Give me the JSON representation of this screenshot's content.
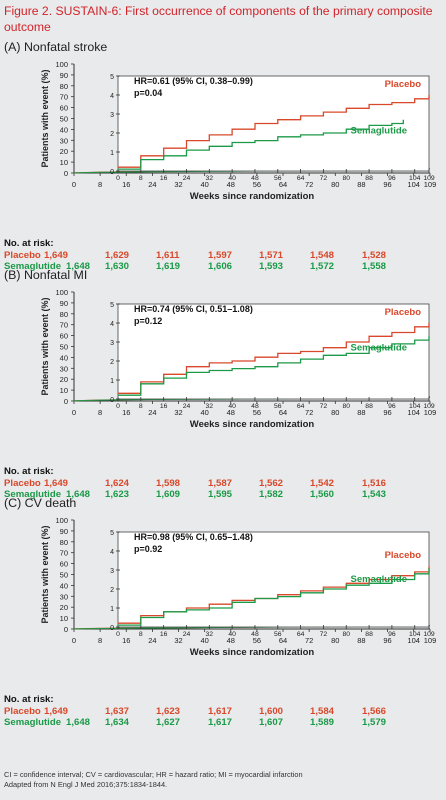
{
  "figure_title": "Figure 2. SUSTAIN-6: First occurrence of components of the primary composite outcome",
  "colors": {
    "placebo": "#d9482b",
    "semaglutide": "#1b9a47",
    "title": "#d2232a"
  },
  "chart_data": [
    {
      "type": "line",
      "title": "(A) Nonfatal stroke",
      "ylabel": "Patients with event (%)",
      "xlabel": "Weeks since randomization",
      "yticks": [
        "0",
        "10",
        "20",
        "30",
        "40",
        "50",
        "60",
        "70",
        "80",
        "90",
        "100"
      ],
      "inset_yticks": [
        "0",
        "1",
        "2",
        "3",
        "4",
        "5"
      ],
      "xticks": [
        "0",
        "8",
        "16",
        "24",
        "32",
        "40",
        "48",
        "56",
        "64",
        "72",
        "80",
        "88",
        "96",
        "104",
        "109"
      ],
      "ylim": [
        0,
        100
      ],
      "inset_ylim": [
        0,
        5
      ],
      "xlim": [
        0,
        109
      ],
      "annotation": [
        "HR=0.61 (95% CI, 0.38–0.99)",
        "p=0.04"
      ],
      "labels": {
        "placebo": "Placebo",
        "semaglutide": "Semaglutide"
      },
      "series": [
        {
          "name": "Placebo",
          "x": [
            0,
            8,
            16,
            24,
            32,
            40,
            48,
            56,
            64,
            72,
            80,
            88,
            96,
            104,
            109
          ],
          "values": [
            0.2,
            0.8,
            1.2,
            1.6,
            1.9,
            2.2,
            2.5,
            2.7,
            2.9,
            3.1,
            3.3,
            3.5,
            3.6,
            3.8,
            4.0
          ]
        },
        {
          "name": "Semaglutide",
          "x": [
            0,
            8,
            16,
            24,
            32,
            40,
            48,
            56,
            64,
            72,
            80,
            88,
            96,
            100
          ],
          "values": [
            0.1,
            0.6,
            0.8,
            1.1,
            1.3,
            1.5,
            1.6,
            1.8,
            1.9,
            2.0,
            2.2,
            2.4,
            2.5,
            2.7
          ]
        }
      ],
      "at_risk": {
        "header": "No. at risk:",
        "placebo": {
          "label": "Placebo",
          "values": [
            "1,649",
            "1,629",
            "1,611",
            "1,597",
            "1,571",
            "1,548",
            "1,528"
          ]
        },
        "semaglutide": {
          "label": "Semaglutide",
          "values": [
            "1,648",
            "1,630",
            "1,619",
            "1,606",
            "1,593",
            "1,572",
            "1,558"
          ]
        }
      }
    },
    {
      "type": "line",
      "title": "(B) Nonfatal MI",
      "ylabel": "Patients with event (%)",
      "xlabel": "Weeks since randomization",
      "yticks": [
        "0",
        "10",
        "20",
        "30",
        "40",
        "50",
        "60",
        "70",
        "80",
        "90",
        "100"
      ],
      "inset_yticks": [
        "0",
        "1",
        "2",
        "3",
        "4",
        "5"
      ],
      "xticks": [
        "0",
        "8",
        "16",
        "24",
        "32",
        "40",
        "48",
        "56",
        "64",
        "72",
        "80",
        "88",
        "96",
        "104",
        "109"
      ],
      "ylim": [
        0,
        100
      ],
      "inset_ylim": [
        0,
        5
      ],
      "xlim": [
        0,
        109
      ],
      "annotation": [
        "HR=0.74 (95% CI, 0.51–1.08)",
        "p=0.12"
      ],
      "labels": {
        "placebo": "Placebo",
        "semaglutide": "Semaglutide"
      },
      "series": [
        {
          "name": "Placebo",
          "x": [
            0,
            8,
            16,
            24,
            32,
            40,
            48,
            56,
            64,
            72,
            80,
            88,
            96,
            104,
            109
          ],
          "values": [
            0.3,
            0.9,
            1.3,
            1.7,
            1.9,
            2.0,
            2.2,
            2.4,
            2.5,
            2.7,
            3.0,
            3.3,
            3.5,
            3.8,
            4.0
          ]
        },
        {
          "name": "Semaglutide",
          "x": [
            0,
            8,
            16,
            24,
            32,
            40,
            48,
            56,
            64,
            72,
            80,
            88,
            96,
            104,
            109
          ],
          "values": [
            0.2,
            0.8,
            1.1,
            1.4,
            1.5,
            1.6,
            1.7,
            1.9,
            2.1,
            2.3,
            2.4,
            2.7,
            2.9,
            3.1,
            3.3
          ]
        }
      ],
      "at_risk": {
        "header": "No. at risk:",
        "placebo": {
          "label": "Placebo",
          "values": [
            "1,649",
            "1,624",
            "1,598",
            "1,587",
            "1,562",
            "1,542",
            "1,516"
          ]
        },
        "semaglutide": {
          "label": "Semaglutide",
          "values": [
            "1,648",
            "1,623",
            "1,609",
            "1,595",
            "1,582",
            "1,560",
            "1,543"
          ]
        }
      }
    },
    {
      "type": "line",
      "title": "(C) CV death",
      "ylabel": "Patients with event (%)",
      "xlabel": "Weeks since randomization",
      "yticks": [
        "0",
        "10",
        "20",
        "30",
        "40",
        "50",
        "60",
        "70",
        "80",
        "90",
        "100"
      ],
      "inset_yticks": [
        "0",
        "1",
        "2",
        "3",
        "4",
        "5"
      ],
      "xticks": [
        "0",
        "8",
        "16",
        "24",
        "32",
        "40",
        "48",
        "56",
        "64",
        "72",
        "80",
        "88",
        "96",
        "104",
        "109"
      ],
      "ylim": [
        0,
        100
      ],
      "inset_ylim": [
        0,
        5
      ],
      "xlim": [
        0,
        109
      ],
      "annotation": [
        "HR=0.98 (95% CI, 0.65–1.48)",
        "p=0.92"
      ],
      "labels": {
        "placebo": "Placebo",
        "semaglutide": "Semaglutide"
      },
      "series": [
        {
          "name": "Placebo",
          "x": [
            0,
            8,
            16,
            24,
            32,
            40,
            48,
            56,
            64,
            72,
            80,
            88,
            96,
            104,
            109
          ],
          "values": [
            0.2,
            0.6,
            0.8,
            1.0,
            1.2,
            1.4,
            1.5,
            1.7,
            1.9,
            2.1,
            2.3,
            2.5,
            2.7,
            2.9,
            3.2
          ]
        },
        {
          "name": "Semaglutide",
          "x": [
            0,
            8,
            16,
            24,
            32,
            40,
            48,
            56,
            64,
            72,
            80,
            88,
            96,
            104,
            109
          ],
          "values": [
            0.1,
            0.5,
            0.8,
            0.9,
            1.0,
            1.3,
            1.5,
            1.6,
            1.8,
            2.0,
            2.2,
            2.3,
            2.5,
            2.8,
            3.1
          ]
        }
      ],
      "at_risk": {
        "header": "No. at risk:",
        "placebo": {
          "label": "Placebo",
          "values": [
            "1,649",
            "1,637",
            "1,623",
            "1,617",
            "1,600",
            "1,584",
            "1,566"
          ]
        },
        "semaglutide": {
          "label": "Semaglutide",
          "values": [
            "1,648",
            "1,634",
            "1,627",
            "1,617",
            "1,607",
            "1,589",
            "1,579"
          ]
        }
      }
    }
  ],
  "footnote": {
    "abbreviations": "CI = confidence interval; CV = cardiovascular; HR = hazard ratio; MI = myocardial infarction",
    "source": "Adapted from N Engl J Med 2016;375:1834-1844."
  }
}
